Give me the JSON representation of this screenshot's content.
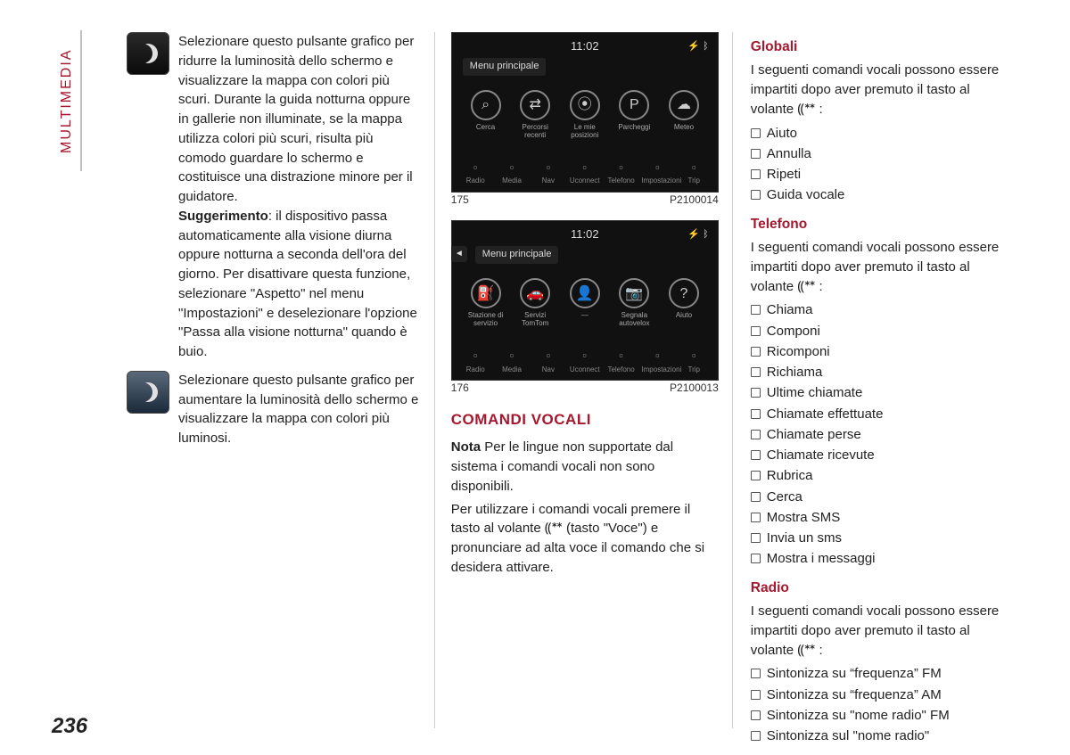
{
  "chapter_tab": "MULTIMEDIA",
  "page_number": "236",
  "accent_color": "#a5182e",
  "col1": {
    "block1_text": "Selezionare questo pulsante grafico per ridurre la luminosità dello schermo e visualizzare la mappa con colori più scuri. Durante la guida notturna oppure in gallerie non illuminate, se la mappa utilizza colori più scuri, risulta più comodo guardare lo schermo e costituisce una distrazione minore per il guidatore.",
    "tip_label": "Suggerimento",
    "tip_text": ": il dispositivo passa automaticamente alla visione diurna oppure notturna a seconda dell'ora del giorno. Per disattivare questa funzione, selezionare \"Aspetto\" nel menu \"Impostazioni\" e deselezionare l'opzione \"Passa alla visione notturna\" quando è buio.",
    "block2_text": "Selezionare questo pulsante grafico per aumentare la luminosità dello schermo e visualizzare la mappa con colori più luminosi."
  },
  "col2": {
    "shot1": {
      "time": "11:02",
      "menu": "Menu principale",
      "icons": [
        "Cerca",
        "Percorsi recenti",
        "Le mie posizioni",
        "Parcheggi",
        "Meteo"
      ],
      "glyphs": [
        "⌕",
        "⇄",
        "⦿",
        "P",
        "☁"
      ],
      "bottom": [
        "Radio",
        "Media",
        "Nav",
        "Uconnect",
        "Telefono",
        "Impostazioni",
        "Trip"
      ],
      "fig_no": "175",
      "fig_code": "P2100014"
    },
    "shot2": {
      "time": "11:02",
      "menu": "Menu principale",
      "icons": [
        "Stazione di servizio",
        "Servizi TomTom",
        "—",
        "Segnala autovelox",
        "Aiuto"
      ],
      "glyphs": [
        "⛽",
        "🚗",
        "👤",
        "📷",
        "?"
      ],
      "bottom": [
        "Radio",
        "Media",
        "Nav",
        "Uconnect",
        "Telefono",
        "Impostazioni",
        "Trip"
      ],
      "fig_no": "176",
      "fig_code": "P2100013"
    },
    "heading": "COMANDI VOCALI",
    "note_label": "Nota",
    "note_text": " Per le lingue non supportate dal sistema i comandi vocali non sono disponibili.",
    "para2": "Per utilizzare i comandi vocali premere il tasto al volante ⸨ᕯ (tasto \"Voce\") e pronunciare ad alta voce il comando che si desidera attivare."
  },
  "col3": {
    "globali": {
      "title": "Globali",
      "intro": "I seguenti comandi vocali possono essere impartiti dopo aver premuto il tasto al volante ⸨ᕯ :",
      "items": [
        "Aiuto",
        "Annulla",
        "Ripeti",
        "Guida vocale"
      ]
    },
    "telefono": {
      "title": "Telefono",
      "intro": "I seguenti comandi vocali possono essere impartiti dopo aver premuto il tasto al volante ⸨ᕯ :",
      "items": [
        "Chiama",
        "Componi",
        "Ricomponi",
        "Richiama",
        "Ultime chiamate",
        "Chiamate effettuate",
        "Chiamate perse",
        "Chiamate ricevute",
        "Rubrica",
        "Cerca",
        "Mostra SMS",
        "Invia un sms",
        "Mostra i messaggi"
      ]
    },
    "radio": {
      "title": "Radio",
      "intro": "I seguenti comandi vocali possono essere impartiti dopo aver premuto il tasto al volante ⸨ᕯ :",
      "items": [
        "Sintonizza su “frequenza” FM",
        "Sintonizza su “frequenza” AM",
        "Sintonizza su \"nome radio\" FM",
        "Sintonizza sul \"nome radio\""
      ]
    }
  }
}
